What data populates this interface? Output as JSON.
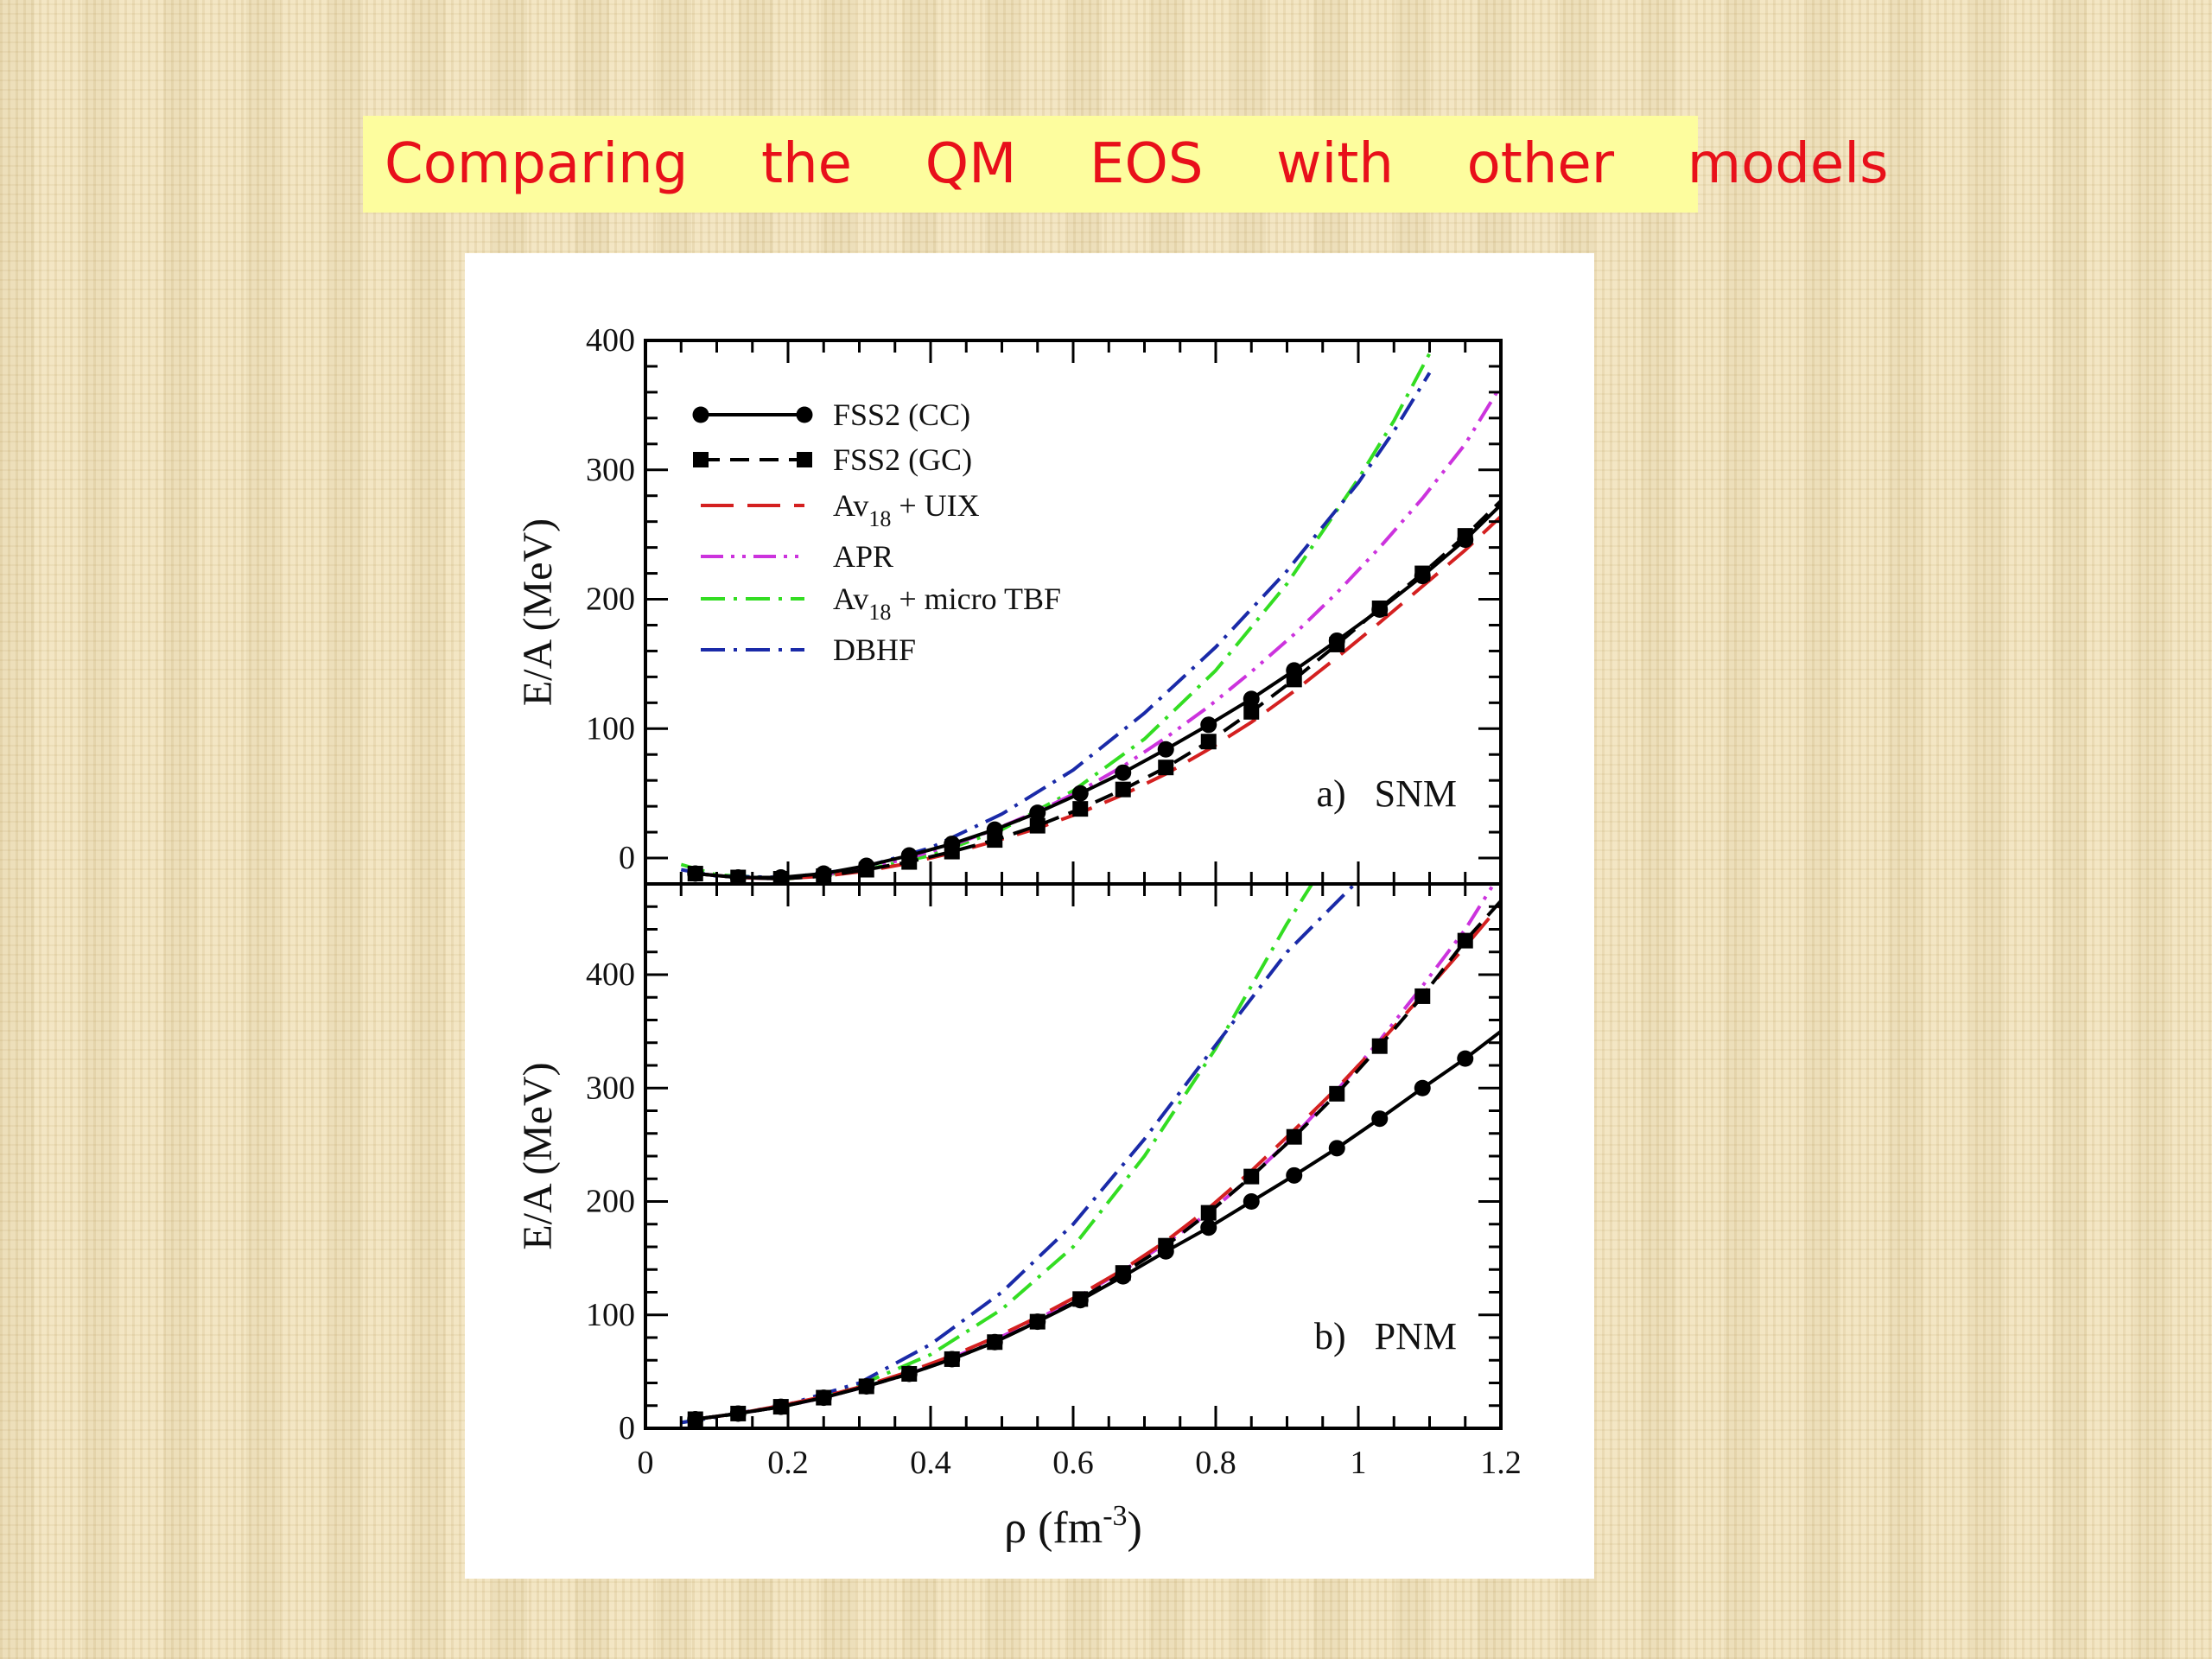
{
  "slide": {
    "title": "Comparing  the  QM  EOS  with  other  models"
  },
  "colors": {
    "title_text": "#e8101a",
    "title_bg": "#fdfd9e",
    "FSS2 (CC)": "#000000",
    "FSS2 (GC)": "#000000",
    "Av18 + UIX": "#d42020",
    "APR": "#cc33dd",
    "Av18 + micro TBF": "#33dd22",
    "DBHF": "#1a2aa8"
  },
  "chart_data": [
    {
      "type": "line",
      "panel_label": "a)   SNM",
      "xlabel": "ρ (fm⁻³)",
      "ylabel": "E/A (MeV)",
      "xlim": [
        0,
        1.2
      ],
      "ylim": [
        -20,
        400
      ],
      "xticks": [
        0,
        0.2,
        0.4,
        0.6,
        0.8,
        1.0,
        1.2
      ],
      "yticks": [
        0,
        100,
        200,
        300,
        400
      ],
      "ytick_labels": [
        "0",
        "100",
        "200",
        "300",
        "400"
      ],
      "legend_position": "upper-left",
      "series": [
        {
          "name": "FSS2 (CC)",
          "style": "solid-circle",
          "x": [
            0.07,
            0.13,
            0.19,
            0.25,
            0.31,
            0.37,
            0.43,
            0.49,
            0.55,
            0.61,
            0.67,
            0.73,
            0.79,
            0.85,
            0.91,
            0.97,
            1.03,
            1.09,
            1.15,
            1.2
          ],
          "y": [
            -12,
            -15,
            -15,
            -12,
            -6,
            2,
            11,
            22,
            35,
            50,
            66,
            84,
            103,
            123,
            145,
            168,
            192,
            218,
            246,
            273
          ]
        },
        {
          "name": "FSS2 (GC)",
          "style": "dashed-square",
          "x": [
            0.07,
            0.13,
            0.19,
            0.25,
            0.31,
            0.37,
            0.43,
            0.49,
            0.55,
            0.61,
            0.67,
            0.73,
            0.79,
            0.85,
            0.91,
            0.97,
            1.03,
            1.09,
            1.15,
            1.2
          ],
          "y": [
            -12,
            -15,
            -16,
            -14,
            -9,
            -3,
            5,
            14,
            25,
            38,
            53,
            70,
            90,
            113,
            138,
            165,
            193,
            220,
            249,
            276
          ]
        },
        {
          "name": "Av18 + UIX",
          "style": "long-dash",
          "x": [
            0.07,
            0.13,
            0.19,
            0.25,
            0.31,
            0.37,
            0.43,
            0.49,
            0.55,
            0.61,
            0.67,
            0.73,
            0.79,
            0.85,
            0.91,
            0.97,
            1.03,
            1.09,
            1.15,
            1.2
          ],
          "y": [
            -12,
            -15,
            -16,
            -14,
            -10,
            -4,
            4,
            13,
            23,
            35,
            49,
            65,
            84,
            105,
            129,
            155,
            182,
            210,
            238,
            264
          ]
        },
        {
          "name": "APR",
          "style": "dash-dot-dot",
          "x": [
            0.07,
            0.13,
            0.19,
            0.25,
            0.31,
            0.37,
            0.43,
            0.49,
            0.55,
            0.61,
            0.67,
            0.73,
            0.79,
            0.85,
            0.91,
            0.97,
            1.03,
            1.09,
            1.15,
            1.2
          ],
          "y": [
            -12,
            -15,
            -16,
            -13,
            -8,
            0,
            10,
            22,
            36,
            52,
            71,
            93,
            117,
            144,
            173,
            205,
            240,
            278,
            320,
            365
          ]
        },
        {
          "name": "Av18 + micro TBF",
          "style": "dash-dot",
          "x": [
            0.05,
            0.1,
            0.2,
            0.3,
            0.4,
            0.5,
            0.6,
            0.7,
            0.8,
            0.9,
            1.0,
            1.05,
            1.1
          ],
          "y": [
            -5,
            -13,
            -16,
            -10,
            2,
            22,
            52,
            92,
            145,
            212,
            293,
            338,
            390
          ]
        },
        {
          "name": "DBHF",
          "style": "dash-dot",
          "x": [
            0.05,
            0.1,
            0.2,
            0.3,
            0.4,
            0.5,
            0.6,
            0.7,
            0.8,
            0.9,
            1.0,
            1.05,
            1.1
          ],
          "y": [
            -9,
            -14,
            -15,
            -8,
            8,
            34,
            68,
            112,
            163,
            222,
            290,
            330,
            375
          ]
        }
      ]
    },
    {
      "type": "line",
      "panel_label": "b)   PNM",
      "xlabel": "ρ (fm⁻³)",
      "ylabel": "E/A (MeV)",
      "xlim": [
        0,
        1.2
      ],
      "ylim": [
        0,
        480
      ],
      "xticks": [
        0,
        0.2,
        0.4,
        0.6,
        0.8,
        1.0,
        1.2
      ],
      "xtick_labels": [
        "0",
        "0.2",
        "0.4",
        "0.6",
        "0.8",
        "1",
        "1.2"
      ],
      "yticks": [
        0,
        100,
        200,
        300,
        400
      ],
      "ytick_labels": [
        "0",
        "100",
        "200",
        "300",
        "400"
      ],
      "series": [
        {
          "name": "FSS2 (CC)",
          "style": "solid-circle",
          "x": [
            0.07,
            0.13,
            0.19,
            0.25,
            0.31,
            0.37,
            0.43,
            0.49,
            0.55,
            0.61,
            0.67,
            0.73,
            0.79,
            0.85,
            0.91,
            0.97,
            1.03,
            1.09,
            1.15,
            1.2
          ],
          "y": [
            8,
            13,
            19,
            27,
            37,
            48,
            61,
            76,
            94,
            113,
            134,
            156,
            177,
            200,
            223,
            247,
            273,
            300,
            326,
            350
          ]
        },
        {
          "name": "FSS2 (GC)",
          "style": "dashed-square",
          "x": [
            0.07,
            0.13,
            0.19,
            0.25,
            0.31,
            0.37,
            0.43,
            0.49,
            0.55,
            0.61,
            0.67,
            0.73,
            0.79,
            0.85,
            0.91,
            0.97,
            1.03,
            1.09,
            1.15,
            1.2
          ],
          "y": [
            8,
            13,
            19,
            27,
            37,
            48,
            61,
            76,
            94,
            114,
            137,
            161,
            190,
            222,
            257,
            295,
            337,
            381,
            430,
            465
          ]
        },
        {
          "name": "Av18 + UIX",
          "style": "long-dash",
          "x": [
            0.07,
            0.13,
            0.19,
            0.25,
            0.31,
            0.37,
            0.43,
            0.49,
            0.55,
            0.61,
            0.67,
            0.73,
            0.79,
            0.85,
            0.91,
            0.97,
            1.03,
            1.09,
            1.15,
            1.2
          ],
          "y": [
            8,
            13,
            20,
            28,
            38,
            50,
            64,
            80,
            98,
            118,
            140,
            165,
            194,
            227,
            263,
            300,
            340,
            382,
            425,
            462
          ]
        },
        {
          "name": "APR",
          "style": "dash-dot-dot",
          "x": [
            0.07,
            0.13,
            0.19,
            0.25,
            0.31,
            0.37,
            0.43,
            0.49,
            0.55,
            0.61,
            0.67,
            0.73,
            0.79,
            0.85,
            0.91,
            0.97,
            1.03,
            1.09,
            1.15,
            1.19
          ],
          "y": [
            8,
            13,
            19,
            27,
            37,
            48,
            62,
            78,
            96,
            117,
            139,
            163,
            190,
            222,
            258,
            298,
            342,
            390,
            440,
            480
          ]
        },
        {
          "name": "Av18 + micro TBF",
          "style": "dash-dot",
          "x": [
            0.05,
            0.1,
            0.2,
            0.3,
            0.4,
            0.5,
            0.6,
            0.7,
            0.8,
            0.9,
            0.935
          ],
          "y": [
            5,
            10,
            20,
            38,
            65,
            105,
            160,
            240,
            335,
            445,
            480
          ]
        },
        {
          "name": "DBHF",
          "style": "dash-dot",
          "x": [
            0.05,
            0.1,
            0.2,
            0.3,
            0.4,
            0.5,
            0.6,
            0.7,
            0.8,
            0.9,
            0.995
          ],
          "y": [
            5,
            10,
            21,
            40,
            74,
            120,
            180,
            255,
            338,
            420,
            480
          ]
        }
      ]
    }
  ]
}
